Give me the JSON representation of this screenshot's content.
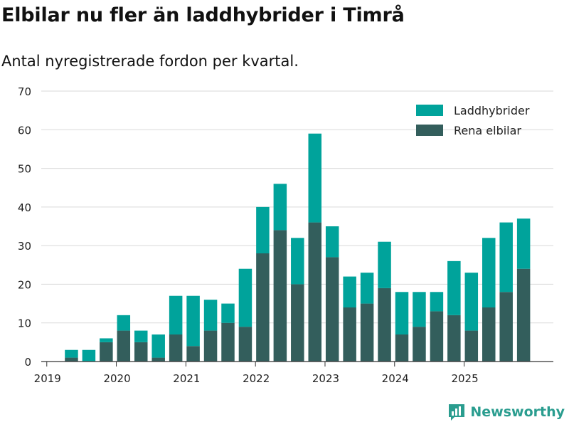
{
  "title": "Elbilar nu fler än laddhybrider i Timrå",
  "subtitle": "Antal nyregistrerade fordon per kvartal.",
  "brand": {
    "name": "Newsworthy",
    "icon": "newsworthy-logo-icon"
  },
  "colors": {
    "phev": "#00a39b",
    "bev": "#335e5c",
    "grid": "#d9d9d9",
    "axis": "#333333",
    "brand": "#2a9d8f"
  },
  "chart_data": {
    "type": "bar",
    "stacked": true,
    "title": "Elbilar nu fler än laddhybrider i Timrå",
    "subtitle": "Antal nyregistrerade fordon per kvartal.",
    "xlabel": "",
    "ylabel": "",
    "ylim": [
      0,
      70
    ],
    "yticks": [
      0,
      10,
      20,
      30,
      40,
      50,
      60,
      70
    ],
    "xtick_labels": [
      "2019",
      "2020",
      "2021",
      "2022",
      "2023",
      "2024",
      "2025"
    ],
    "xtick_quarter_index": [
      0,
      4,
      8,
      12,
      16,
      20,
      24
    ],
    "legend_position": "top-right",
    "categories": [
      "2019-Q1",
      "2019-Q2",
      "2019-Q3",
      "2019-Q4",
      "2020-Q1",
      "2020-Q2",
      "2020-Q3",
      "2020-Q4",
      "2021-Q1",
      "2021-Q2",
      "2021-Q3",
      "2021-Q4",
      "2022-Q1",
      "2022-Q2",
      "2022-Q3",
      "2022-Q4",
      "2023-Q1",
      "2023-Q2",
      "2023-Q3",
      "2023-Q4",
      "2024-Q1",
      "2024-Q2",
      "2024-Q3",
      "2024-Q4",
      "2025-Q1",
      "2025-Q2",
      "2025-Q3",
      "2025-Q4"
    ],
    "series": [
      {
        "name": "Rena elbilar",
        "color": "#335e5c",
        "values": [
          0,
          1,
          0,
          5,
          8,
          5,
          1,
          7,
          4,
          8,
          10,
          9,
          28,
          34,
          20,
          36,
          27,
          14,
          15,
          19,
          7,
          9,
          13,
          12,
          8,
          14,
          18,
          24
        ]
      },
      {
        "name": "Laddhybrider",
        "color": "#00a39b",
        "values": [
          0,
          2,
          3,
          1,
          4,
          3,
          6,
          10,
          13,
          8,
          5,
          15,
          12,
          12,
          12,
          23,
          8,
          8,
          8,
          12,
          11,
          9,
          5,
          14,
          15,
          18,
          18,
          13
        ]
      }
    ],
    "legend": [
      "Laddhybrider",
      "Rena elbilar"
    ]
  }
}
